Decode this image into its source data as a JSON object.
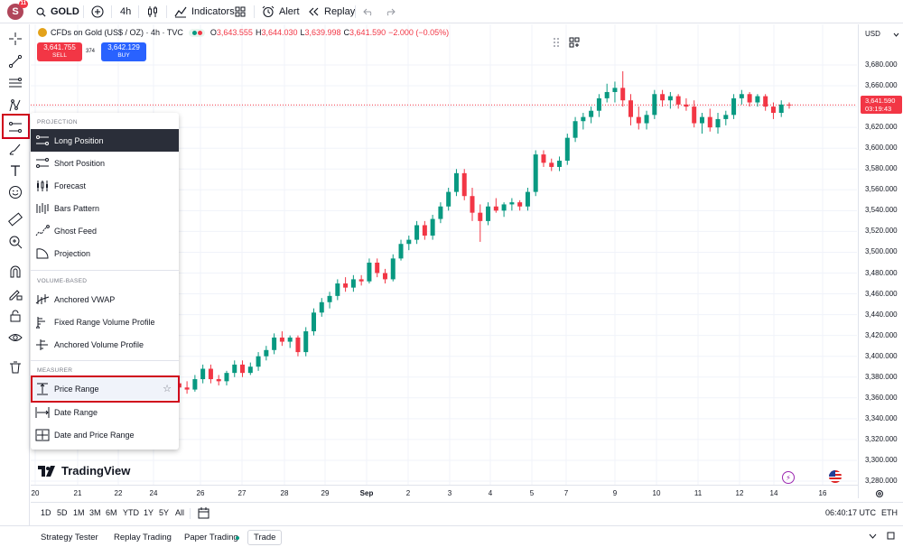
{
  "topbar": {
    "avatar_letter": "S",
    "avatar_badge": "11",
    "symbol": "GOLD",
    "interval": "4h",
    "indicators_label": "Indicators",
    "alert_label": "Alert",
    "replay_label": "Replay"
  },
  "legend": {
    "title": "CFDs on Gold (US$ / OZ) · 4h · TVC",
    "o_label": "O",
    "o_value": "3,643.555",
    "h_label": "H",
    "h_value": "3,644.030",
    "l_label": "L",
    "l_value": "3,639.998",
    "c_label": "C",
    "c_value": "3,641.590",
    "change": "−2.000 (−0.05%)"
  },
  "trade": {
    "sell_price": "3,641.755",
    "sell_label": "SELL",
    "spread": "374",
    "buy_price": "3,642.129",
    "buy_label": "BUY"
  },
  "price_axis": {
    "currency": "USD",
    "ticks": [
      "3,680.000",
      "3,660.000",
      "3,640.000",
      "3,620.000",
      "3,600.000",
      "3,580.000",
      "3,560.000",
      "3,540.000",
      "3,520.000",
      "3,500.000",
      "3,480.000",
      "3,460.000",
      "3,440.000",
      "3,420.000",
      "3,400.000",
      "3,380.000",
      "3,360.000",
      "3,340.000",
      "3,320.000",
      "3,300.000",
      "3,280.000"
    ],
    "current_price": "3,641.590",
    "countdown": "03:19:43"
  },
  "time_axis": {
    "ticks": [
      "20",
      "21",
      "22",
      "24",
      "26",
      "27",
      "28",
      "29",
      "Sep",
      "2",
      "3",
      "4",
      "5",
      "7",
      "9",
      "10",
      "11",
      "12",
      "14",
      "16"
    ]
  },
  "range_bar": {
    "ranges": [
      "1D",
      "5D",
      "1M",
      "3M",
      "6M",
      "YTD",
      "1Y",
      "5Y",
      "All"
    ],
    "clock": "06:40:17 UTC",
    "session": "ETH"
  },
  "bottom_bar": {
    "tabs": [
      "Strategy Tester",
      "Replay Trading",
      "Paper Trading",
      "Trade"
    ]
  },
  "menu": {
    "sections": {
      "projection": "PROJECTION",
      "volume": "VOLUME-BASED",
      "measurer": "MEASURER"
    },
    "projection_items": [
      "Long Position",
      "Short Position",
      "Forecast",
      "Bars Pattern",
      "Ghost Feed",
      "Projection"
    ],
    "volume_items": [
      "Anchored VWAP",
      "Fixed Range Volume Profile",
      "Anchored Volume Profile"
    ],
    "measurer_items": [
      "Price Range",
      "Date Range",
      "Date and Price Range"
    ]
  },
  "logo": {
    "text": "TradingView"
  },
  "colors": {
    "up": "#089981",
    "down": "#f23645",
    "accent": "#2962ff",
    "highlight": "#d0021b"
  },
  "chart_data": {
    "type": "candlestick",
    "ylim": [
      3270,
      3690
    ],
    "current_price": 3641.59,
    "candles": [
      [
        3372,
        3376,
        3360,
        3366
      ],
      [
        3366,
        3370,
        3352,
        3358
      ],
      [
        3358,
        3378,
        3356,
        3374
      ],
      [
        3374,
        3380,
        3366,
        3370
      ],
      [
        3370,
        3376,
        3364,
        3368
      ],
      [
        3368,
        3382,
        3366,
        3378
      ],
      [
        3378,
        3392,
        3374,
        3388
      ],
      [
        3388,
        3392,
        3374,
        3378
      ],
      [
        3378,
        3382,
        3372,
        3376
      ],
      [
        3376,
        3386,
        3372,
        3384
      ],
      [
        3384,
        3396,
        3380,
        3392
      ],
      [
        3392,
        3396,
        3380,
        3384
      ],
      [
        3384,
        3394,
        3382,
        3390
      ],
      [
        3390,
        3404,
        3386,
        3400
      ],
      [
        3400,
        3410,
        3396,
        3406
      ],
      [
        3406,
        3422,
        3402,
        3418
      ],
      [
        3418,
        3424,
        3410,
        3414
      ],
      [
        3414,
        3420,
        3408,
        3418
      ],
      [
        3418,
        3420,
        3400,
        3404
      ],
      [
        3404,
        3428,
        3400,
        3424
      ],
      [
        3424,
        3446,
        3420,
        3442
      ],
      [
        3442,
        3456,
        3438,
        3452
      ],
      [
        3452,
        3462,
        3446,
        3458
      ],
      [
        3458,
        3474,
        3454,
        3470
      ],
      [
        3470,
        3476,
        3462,
        3466
      ],
      [
        3466,
        3478,
        3462,
        3474
      ],
      [
        3474,
        3478,
        3468,
        3472
      ],
      [
        3472,
        3494,
        3470,
        3490
      ],
      [
        3490,
        3494,
        3476,
        3480
      ],
      [
        3480,
        3484,
        3470,
        3474
      ],
      [
        3474,
        3498,
        3472,
        3494
      ],
      [
        3494,
        3512,
        3492,
        3508
      ],
      [
        3508,
        3516,
        3502,
        3512
      ],
      [
        3512,
        3530,
        3508,
        3526
      ],
      [
        3526,
        3530,
        3512,
        3516
      ],
      [
        3516,
        3536,
        3512,
        3532
      ],
      [
        3532,
        3548,
        3528,
        3544
      ],
      [
        3544,
        3562,
        3540,
        3558
      ],
      [
        3558,
        3580,
        3554,
        3576
      ],
      [
        3576,
        3580,
        3550,
        3554
      ],
      [
        3554,
        3562,
        3530,
        3538
      ],
      [
        3538,
        3546,
        3510,
        3530
      ],
      [
        3530,
        3548,
        3526,
        3544
      ],
      [
        3544,
        3552,
        3538,
        3540
      ],
      [
        3540,
        3548,
        3534,
        3546
      ],
      [
        3546,
        3552,
        3540,
        3548
      ],
      [
        3548,
        3550,
        3540,
        3544
      ],
      [
        3544,
        3562,
        3540,
        3558
      ],
      [
        3558,
        3598,
        3554,
        3594
      ],
      [
        3594,
        3598,
        3582,
        3586
      ],
      [
        3586,
        3590,
        3578,
        3582
      ],
      [
        3582,
        3592,
        3578,
        3588
      ],
      [
        3588,
        3614,
        3584,
        3610
      ],
      [
        3610,
        3630,
        3606,
        3626
      ],
      [
        3626,
        3634,
        3618,
        3630
      ],
      [
        3630,
        3640,
        3624,
        3636
      ],
      [
        3636,
        3652,
        3630,
        3648
      ],
      [
        3648,
        3662,
        3644,
        3654
      ],
      [
        3654,
        3664,
        3644,
        3658
      ],
      [
        3658,
        3674,
        3640,
        3646
      ],
      [
        3646,
        3652,
        3622,
        3630
      ],
      [
        3630,
        3640,
        3618,
        3624
      ],
      [
        3624,
        3636,
        3618,
        3632
      ],
      [
        3632,
        3656,
        3628,
        3652
      ],
      [
        3652,
        3656,
        3640,
        3646
      ],
      [
        3646,
        3654,
        3638,
        3650
      ],
      [
        3650,
        3652,
        3638,
        3642
      ],
      [
        3642,
        3648,
        3636,
        3640
      ],
      [
        3640,
        3646,
        3620,
        3624
      ],
      [
        3624,
        3634,
        3614,
        3630
      ],
      [
        3630,
        3638,
        3616,
        3620
      ],
      [
        3620,
        3634,
        3614,
        3628
      ],
      [
        3628,
        3636,
        3622,
        3632
      ],
      [
        3632,
        3652,
        3628,
        3648
      ],
      [
        3648,
        3656,
        3642,
        3652
      ],
      [
        3652,
        3654,
        3640,
        3644
      ],
      [
        3644,
        3652,
        3640,
        3650
      ],
      [
        3650,
        3652,
        3636,
        3640
      ],
      [
        3640,
        3644,
        3628,
        3634
      ],
      [
        3634,
        3646,
        3630,
        3642
      ],
      [
        3642,
        3644,
        3638,
        3641.59
      ]
    ]
  }
}
